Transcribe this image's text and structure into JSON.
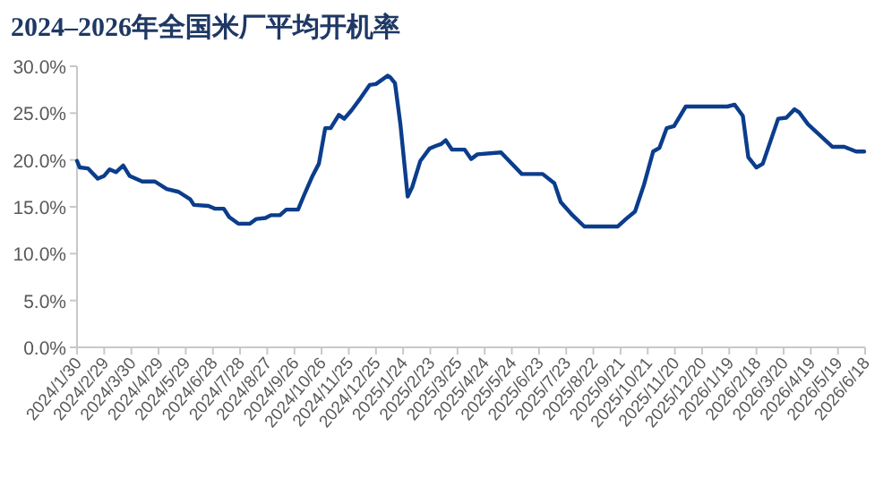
{
  "chart_data": {
    "type": "line",
    "title": "2024–2026年全国米厂平均开机率",
    "x": [
      "2024-01-30",
      "2024-02-02",
      "2024-02-11",
      "2024-02-22",
      "2024-02-29",
      "2024-03-06",
      "2024-03-13",
      "2024-03-21",
      "2024-03-28",
      "2024-04-11",
      "2024-04-25",
      "2024-05-08",
      "2024-05-21",
      "2024-06-03",
      "2024-06-07",
      "2024-06-23",
      "2024-06-30",
      "2024-07-10",
      "2024-07-16",
      "2024-07-26",
      "2024-08-08",
      "2024-08-15",
      "2024-08-25",
      "2024-08-31",
      "2024-09-10",
      "2024-09-17",
      "2024-09-30",
      "2024-10-06",
      "2024-10-16",
      "2024-10-23",
      "2024-10-30",
      "2024-11-05",
      "2024-11-14",
      "2024-11-20",
      "2024-11-28",
      "2024-12-08",
      "2024-12-18",
      "2024-12-25",
      "2025-01-07",
      "2025-01-10",
      "2025-01-15",
      "2025-01-21",
      "2025-01-29",
      "2025-02-03",
      "2025-02-12",
      "2025-02-22",
      "2025-03-01",
      "2025-03-07",
      "2025-03-12",
      "2025-03-19",
      "2025-04-02",
      "2025-04-09",
      "2025-04-16",
      "2025-05-12",
      "2025-06-04",
      "2025-06-27",
      "2025-07-10",
      "2025-07-17",
      "2025-07-30",
      "2025-08-12",
      "2025-09-18",
      "2025-09-27",
      "2025-10-07",
      "2025-10-17",
      "2025-10-27",
      "2025-11-03",
      "2025-11-11",
      "2025-11-19",
      "2025-12-02",
      "2026-01-17",
      "2026-01-25",
      "2026-02-03",
      "2026-02-09",
      "2026-02-18",
      "2026-02-25",
      "2026-03-14",
      "2026-03-23",
      "2026-04-01",
      "2026-04-06",
      "2026-04-16",
      "2026-05-13",
      "2026-05-26",
      "2026-06-08",
      "2026-06-17"
    ],
    "series": [
      {
        "color": "#0b3d8c",
        "values": [
          19.9,
          19.2,
          19.1,
          18.0,
          18.3,
          19.0,
          18.7,
          19.4,
          18.3,
          17.7,
          17.7,
          16.9,
          16.6,
          15.8,
          15.2,
          15.1,
          14.8,
          14.8,
          13.9,
          13.2,
          13.2,
          13.7,
          13.8,
          14.1,
          14.1,
          14.7,
          14.7,
          16.1,
          18.3,
          19.6,
          23.4,
          23.4,
          24.8,
          24.4,
          25.3,
          26.6,
          28.0,
          28.1,
          29.0,
          28.8,
          28.2,
          23.8,
          16.1,
          17.1,
          19.9,
          21.2,
          21.5,
          21.7,
          22.1,
          21.1,
          21.1,
          20.1,
          20.6,
          20.8,
          18.5,
          18.5,
          17.5,
          15.5,
          14.1,
          12.9,
          12.9,
          13.7,
          14.5,
          17.4,
          20.9,
          21.3,
          23.4,
          23.6,
          25.7,
          25.7,
          25.9,
          24.7,
          20.3,
          19.2,
          19.6,
          24.4,
          24.5,
          25.4,
          25.1,
          23.8,
          21.4,
          21.4,
          20.9,
          20.9
        ]
      }
    ],
    "xlim": [
      "2024-01-30",
      "2026-06-18"
    ],
    "xticks": [
      {
        "value": "2024-01-30",
        "label": "2024/1/30"
      },
      {
        "value": "2024-02-29",
        "label": "2024/2/29"
      },
      {
        "value": "2024-03-30",
        "label": "2024/3/30"
      },
      {
        "value": "2024-04-29",
        "label": "2024/4/29"
      },
      {
        "value": "2024-05-29",
        "label": "2024/5/29"
      },
      {
        "value": "2024-06-28",
        "label": "2024/6/28"
      },
      {
        "value": "2024-07-28",
        "label": "2024/7/28"
      },
      {
        "value": "2024-08-27",
        "label": "2024/8/27"
      },
      {
        "value": "2024-09-26",
        "label": "2024/9/26"
      },
      {
        "value": "2024-10-26",
        "label": "2024/10/26"
      },
      {
        "value": "2024-11-25",
        "label": "2024/11/25"
      },
      {
        "value": "2024-12-25",
        "label": "2024/12/25"
      },
      {
        "value": "2025-01-24",
        "label": "2025/1/24"
      },
      {
        "value": "2025-02-23",
        "label": "2025/2/23"
      },
      {
        "value": "2025-03-25",
        "label": "2025/3/25"
      },
      {
        "value": "2025-04-24",
        "label": "2025/4/24"
      },
      {
        "value": "2025-05-24",
        "label": "2025/5/24"
      },
      {
        "value": "2025-06-23",
        "label": "2025/6/23"
      },
      {
        "value": "2025-07-23",
        "label": "2025/7/23"
      },
      {
        "value": "2025-08-22",
        "label": "2025/8/22"
      },
      {
        "value": "2025-09-21",
        "label": "2025/9/21"
      },
      {
        "value": "2025-10-21",
        "label": "2025/10/21"
      },
      {
        "value": "2025-11-20",
        "label": "2025/11/20"
      },
      {
        "value": "2025-12-20",
        "label": "2025/12/20"
      },
      {
        "value": "2026-01-19",
        "label": "2026/1/19"
      },
      {
        "value": "2026-02-18",
        "label": "2026/2/18"
      },
      {
        "value": "2026-03-20",
        "label": "2026/3/20"
      },
      {
        "value": "2026-04-19",
        "label": "2026/4/19"
      },
      {
        "value": "2026-05-19",
        "label": "2026/5/19"
      },
      {
        "value": "2026-06-18",
        "label": "2026/6/18"
      }
    ],
    "ylim": [
      0,
      30
    ],
    "yticks": [
      {
        "value": 0,
        "label": "0.0%"
      },
      {
        "value": 5,
        "label": "5.0%"
      },
      {
        "value": 10,
        "label": "10.0%"
      },
      {
        "value": 15,
        "label": "15.0%"
      },
      {
        "value": 20,
        "label": "20.0%"
      },
      {
        "value": 25,
        "label": "25.0%"
      },
      {
        "value": 30,
        "label": "30.0%"
      }
    ],
    "grid": false
  }
}
